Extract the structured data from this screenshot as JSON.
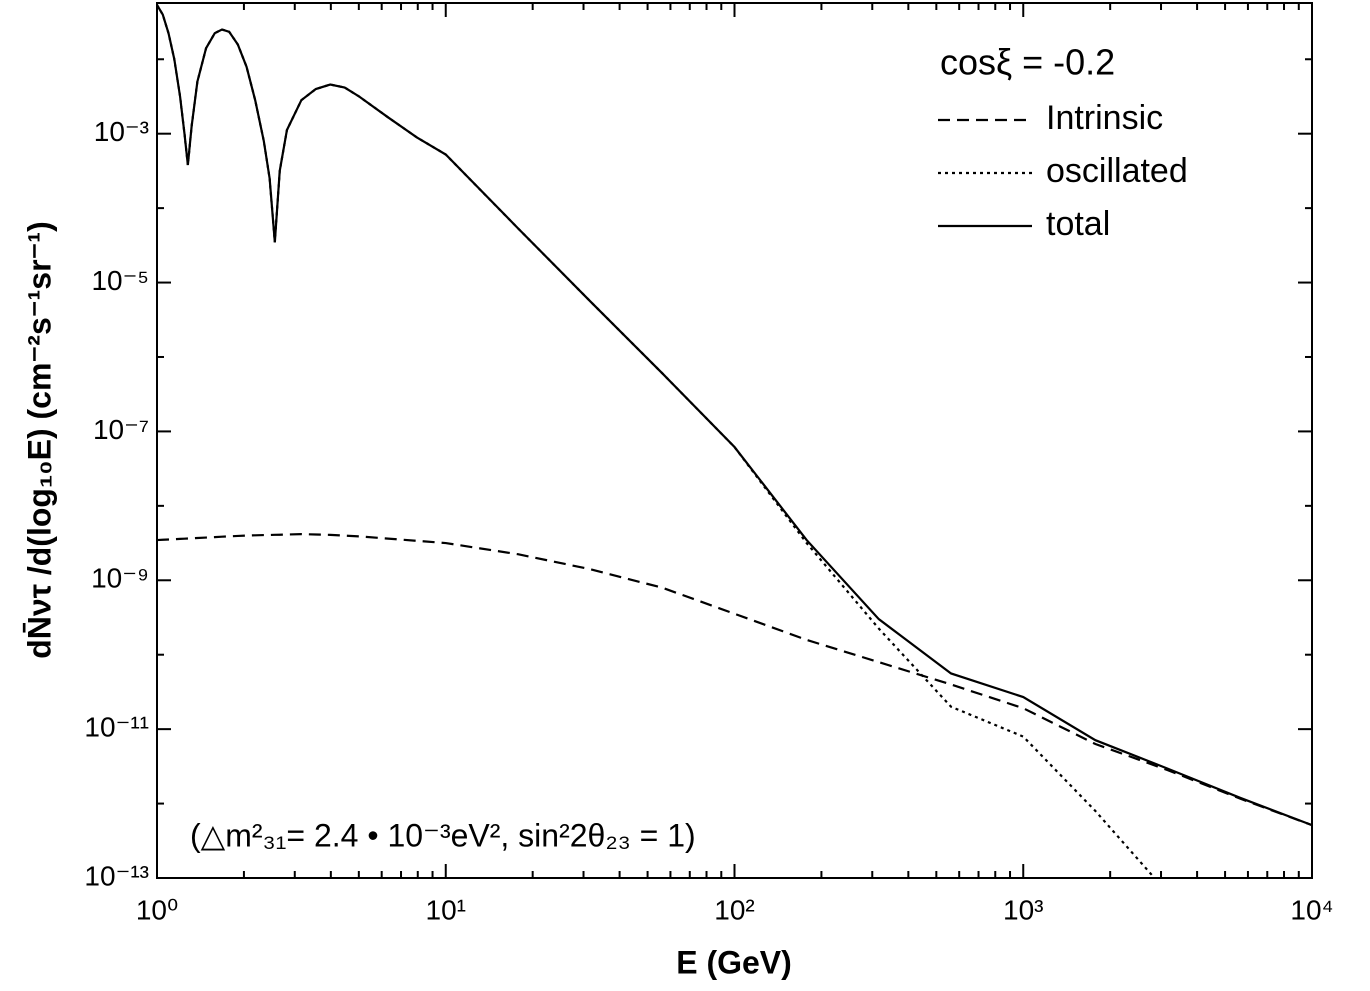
{
  "chart_data": {
    "type": "line",
    "xlabel": "E (GeV)",
    "ylabel": "dN̄ντ /d(log₁₀E)  (cm⁻²s⁻¹sr⁻¹)",
    "legend_title": "cosξ = -0.2",
    "annotation": "(△m²₃₁= 2.4 • 10⁻³eV², sin²2θ₂₃ = 1)",
    "log_x": true,
    "log_y": true,
    "legend": "upper right",
    "xlim": [
      1,
      10000
    ],
    "ylim": [
      1e-13,
      0.057
    ],
    "xticks": [
      {
        "value": 1,
        "label": "10⁰"
      },
      {
        "value": 10,
        "label": "10¹"
      },
      {
        "value": 100,
        "label": "10²"
      },
      {
        "value": 1000,
        "label": "10³"
      },
      {
        "value": 10000,
        "label": "10⁴"
      }
    ],
    "xminorticks": [
      2,
      3,
      4,
      5,
      6,
      7,
      8,
      9,
      20,
      30,
      40,
      50,
      60,
      70,
      80,
      90,
      200,
      300,
      400,
      500,
      600,
      700,
      800,
      900,
      2000,
      3000,
      4000,
      5000,
      6000,
      7000,
      8000,
      9000
    ],
    "yticks": [
      {
        "value": 1e-13,
        "label": "10⁻¹³"
      },
      {
        "value": 1e-11,
        "label": "10⁻¹¹"
      },
      {
        "value": 1e-09,
        "label": "10⁻⁹"
      },
      {
        "value": 1e-07,
        "label": "10⁻⁷"
      },
      {
        "value": 1e-05,
        "label": "10⁻⁵"
      },
      {
        "value": 0.001,
        "label": "10⁻³"
      }
    ],
    "yminorticks": [
      1e-12,
      1e-10,
      1e-08,
      1e-06,
      0.0001,
      0.01
    ],
    "x": [
      1,
      1.047,
      1.096,
      1.148,
      1.202,
      1.245,
      1.279,
      1.318,
      1.38,
      1.479,
      1.585,
      1.679,
      1.778,
      1.905,
      2.042,
      2.188,
      2.344,
      2.455,
      2.559,
      2.661,
      2.818,
      3.162,
      3.548,
      3.981,
      4.467,
      5.012,
      6.31,
      7.943,
      10,
      17.78,
      31.62,
      56.23,
      100,
      177.8,
      316.2,
      562.3,
      1000,
      1778,
      3162,
      5623,
      10000
    ],
    "series": [
      {
        "name": "Intrinsic",
        "color": "#000000",
        "dash": "dashed",
        "values": [
          3.47e-09,
          3.5e-09,
          3.53e-09,
          3.56e-09,
          3.6e-09,
          3.62e-09,
          3.64e-09,
          3.66e-09,
          3.7e-09,
          3.75e-09,
          3.8e-09,
          3.85e-09,
          3.89e-09,
          3.94e-09,
          3.99e-09,
          4.02e-09,
          4.05e-09,
          4.06e-09,
          4.08e-09,
          4.09e-09,
          4.12e-09,
          4.17e-09,
          4.12e-09,
          4.07e-09,
          3.98e-09,
          3.89e-09,
          3.63e-09,
          3.39e-09,
          3.16e-09,
          2.24e-09,
          1.41e-09,
          7.94e-10,
          3.55e-10,
          1.58e-10,
          7.94e-11,
          3.98e-11,
          1.91e-11,
          6.31e-12,
          2.82e-12,
          1.17e-12,
          5.13e-13
        ]
      },
      {
        "name": "oscillated",
        "color": "#000000",
        "dash": "dotted",
        "values": [
          0.0537,
          0.0398,
          0.0224,
          0.01,
          0.00316,
          0.001,
          0.00038,
          0.00126,
          0.00501,
          0.0141,
          0.0224,
          0.0251,
          0.0234,
          0.0158,
          0.00794,
          0.00282,
          0.000794,
          0.000251,
          3.47e-05,
          0.000316,
          0.00112,
          0.00282,
          0.00398,
          0.00457,
          0.00417,
          0.00316,
          0.00166,
          0.000891,
          0.000525,
          5.37e-05,
          5.62e-06,
          6.03e-07,
          6.17e-08,
          3.16e-09,
          2.24e-10,
          2e-11,
          7.94e-12,
          7.94e-13,
          6.31e-14,
          null,
          null
        ]
      },
      {
        "name": "total",
        "color": "#000000",
        "dash": "solid",
        "values": [
          0.0537,
          0.0398,
          0.0224,
          0.01,
          0.00316,
          0.001,
          0.00038,
          0.00126,
          0.00501,
          0.0141,
          0.0224,
          0.0251,
          0.0234,
          0.0158,
          0.00794,
          0.00282,
          0.000794,
          0.000251,
          3.47e-05,
          0.000316,
          0.00112,
          0.00282,
          0.00398,
          0.00457,
          0.00417,
          0.00316,
          0.00166,
          0.000891,
          0.000525,
          5.37e-05,
          5.62e-06,
          6.03e-07,
          6.17e-08,
          3.47e-09,
          3e-10,
          5.6e-11,
          2.7e-11,
          7.1e-12,
          2.95e-12,
          1.2e-12,
          5.13e-13
        ]
      }
    ]
  }
}
